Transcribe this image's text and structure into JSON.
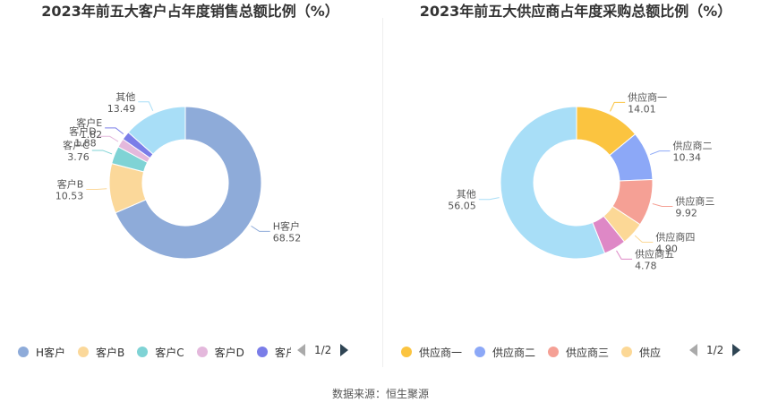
{
  "footer": "数据来源：恒生聚源",
  "charts": [
    {
      "pager": "1/2",
      "legend": [
        {
          "label": "H客户",
          "color": "#8eabd9"
        },
        {
          "label": "客户B",
          "color": "#fbd89a"
        },
        {
          "label": "客户C",
          "color": "#7fd3d5"
        },
        {
          "label": "客户D",
          "color": "#e4b8dc"
        },
        {
          "label": "客户E",
          "color": "#7a7de8"
        }
      ]
    },
    {
      "pager": "1/2",
      "legend": [
        {
          "label": "供应商一",
          "color": "#fbc440"
        },
        {
          "label": "供应商二",
          "color": "#8ca8f7"
        },
        {
          "label": "供应商三",
          "color": "#f5a095"
        },
        {
          "label": "供应",
          "color": "#fcd896"
        }
      ]
    }
  ],
  "chart_data": [
    {
      "type": "pie",
      "title": "2023年前五大客户占年度销售总额比例（%）",
      "categories": [
        "H客户",
        "客户B",
        "客户C",
        "客户D",
        "客户E",
        "其他"
      ],
      "values": [
        68.52,
        10.53,
        3.76,
        1.88,
        1.82,
        13.49
      ],
      "value_labels": [
        "68.52",
        "10.53",
        "3.76",
        "1.88",
        "1.82",
        "13.49"
      ],
      "colors": [
        "#8eabd9",
        "#fbd89a",
        "#7fd3d5",
        "#e4b8dc",
        "#7a7de8",
        "#a8def7"
      ],
      "style": "donut",
      "legend_position": "bottom"
    },
    {
      "type": "pie",
      "title": "2023年前五大供应商占年度采购总额比例（%）",
      "categories": [
        "供应商一",
        "供应商二",
        "供应商三",
        "供应商四",
        "供应商五",
        "其他"
      ],
      "values": [
        14.01,
        10.34,
        9.92,
        4.9,
        4.78,
        56.05
      ],
      "value_labels": [
        "14.01",
        "10.34",
        "9.92",
        "4.90",
        "4.78",
        "56.05"
      ],
      "colors": [
        "#fbc440",
        "#8ca8f7",
        "#f5a095",
        "#fcd896",
        "#de88c6",
        "#a8def7"
      ],
      "style": "donut",
      "legend_position": "bottom"
    }
  ]
}
